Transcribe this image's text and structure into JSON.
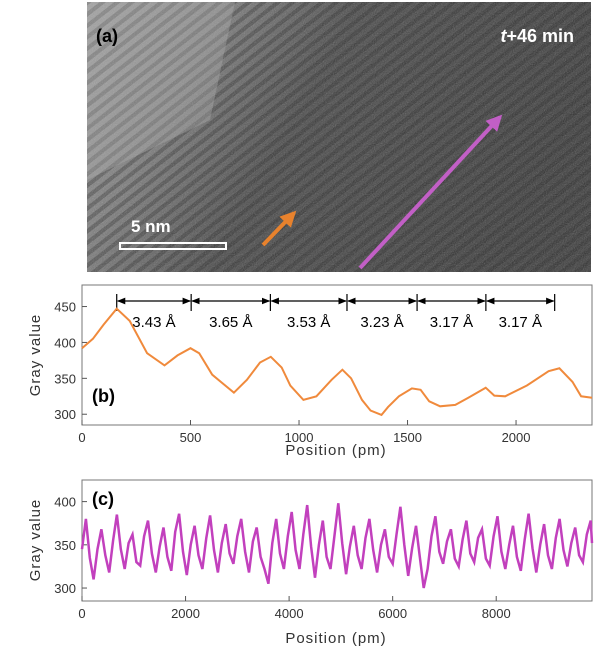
{
  "figure": {
    "panel_a": {
      "label": "(a)",
      "time_text": "t+46 min",
      "time_text_italic": "t",
      "time_text_rest": "+46 min",
      "scale_bar_label": "5 nm",
      "arrow_colors": {
        "orange": "#E8822D",
        "magenta": "#C25FC6"
      }
    }
  },
  "chart_data": [
    {
      "panel": "(b)",
      "type": "line",
      "xlabel": "Position (pm)",
      "ylabel": "Gray value",
      "xlim": [
        0,
        2350
      ],
      "ylim": [
        285,
        480
      ],
      "xticks": [
        0,
        500,
        1000,
        1500,
        2000
      ],
      "yticks": [
        300,
        350,
        400,
        450
      ],
      "color": "#F08A3C",
      "x": [
        0,
        50,
        100,
        160,
        220,
        300,
        380,
        440,
        500,
        540,
        600,
        700,
        760,
        820,
        870,
        920,
        960,
        1020,
        1080,
        1150,
        1200,
        1240,
        1290,
        1330,
        1380,
        1410,
        1460,
        1520,
        1560,
        1600,
        1650,
        1720,
        1780,
        1820,
        1860,
        1900,
        1950,
        2050,
        2150,
        2200,
        2260,
        2300,
        2350
      ],
      "values": [
        392,
        405,
        425,
        447,
        430,
        385,
        368,
        382,
        392,
        385,
        355,
        330,
        348,
        372,
        380,
        365,
        340,
        320,
        325,
        348,
        362,
        350,
        320,
        305,
        299,
        310,
        325,
        336,
        334,
        318,
        311,
        313,
        323,
        330,
        337,
        326,
        325,
        340,
        360,
        364,
        345,
        325,
        323
      ],
      "spacing_labels": [
        "3.43 Å",
        "3.65 Å",
        "3.53 Å",
        "3.23 Å",
        "3.17 Å",
        "3.17 Å"
      ],
      "spacing_positions": [
        160,
        503,
        868,
        1221,
        1544,
        1861,
        2178
      ]
    },
    {
      "panel": "(c)",
      "type": "line",
      "xlabel": "Position (pm)",
      "ylabel": "Gray value",
      "xlim": [
        0,
        9850
      ],
      "ylim": [
        285,
        425
      ],
      "xticks": [
        0,
        2000,
        4000,
        6000,
        8000
      ],
      "yticks": [
        300,
        350,
        400
      ],
      "color": "#C240BD",
      "x": [
        0,
        75,
        150,
        225,
        300,
        375,
        450,
        525,
        600,
        675,
        750,
        825,
        900,
        975,
        1050,
        1125,
        1200,
        1275,
        1350,
        1425,
        1500,
        1575,
        1650,
        1725,
        1800,
        1875,
        1950,
        2025,
        2100,
        2175,
        2250,
        2325,
        2400,
        2475,
        2550,
        2625,
        2700,
        2775,
        2850,
        2925,
        3000,
        3075,
        3150,
        3225,
        3300,
        3375,
        3450,
        3525,
        3600,
        3675,
        3750,
        3825,
        3900,
        3975,
        4050,
        4125,
        4200,
        4275,
        4350,
        4425,
        4500,
        4575,
        4650,
        4725,
        4800,
        4875,
        4950,
        5025,
        5100,
        5175,
        5250,
        5325,
        5400,
        5475,
        5550,
        5625,
        5700,
        5775,
        5850,
        5925,
        6000,
        6075,
        6150,
        6225,
        6300,
        6375,
        6450,
        6525,
        6600,
        6675,
        6750,
        6825,
        6900,
        6975,
        7050,
        7125,
        7200,
        7275,
        7350,
        7425,
        7500,
        7575,
        7650,
        7725,
        7800,
        7875,
        7950,
        8025,
        8100,
        8175,
        8250,
        8325,
        8400,
        8475,
        8550,
        8625,
        8700,
        8775,
        8850,
        8925,
        9000,
        9075,
        9150,
        9225,
        9300,
        9375,
        9450,
        9525,
        9600,
        9675,
        9750,
        9825,
        9850
      ],
      "values": [
        345,
        380,
        335,
        310,
        345,
        368,
        338,
        318,
        355,
        385,
        345,
        322,
        352,
        362,
        330,
        326,
        360,
        378,
        340,
        318,
        348,
        370,
        336,
        320,
        365,
        386,
        342,
        315,
        350,
        372,
        338,
        322,
        358,
        384,
        344,
        318,
        352,
        374,
        340,
        328,
        360,
        380,
        342,
        318,
        354,
        370,
        336,
        322,
        305,
        352,
        380,
        340,
        322,
        360,
        388,
        344,
        322,
        362,
        396,
        348,
        312,
        350,
        378,
        336,
        322,
        360,
        398,
        352,
        316,
        348,
        372,
        338,
        322,
        358,
        380,
        344,
        318,
        350,
        368,
        336,
        328,
        362,
        394,
        350,
        314,
        346,
        372,
        336,
        300,
        322,
        360,
        383,
        342,
        328,
        354,
        368,
        334,
        325,
        356,
        378,
        340,
        330,
        358,
        368,
        334,
        326,
        360,
        383,
        342,
        322,
        350,
        372,
        336,
        320,
        356,
        386,
        346,
        318,
        350,
        374,
        338,
        322,
        358,
        380,
        344,
        325,
        352,
        370,
        338,
        330,
        362,
        378,
        352
      ]
    }
  ]
}
